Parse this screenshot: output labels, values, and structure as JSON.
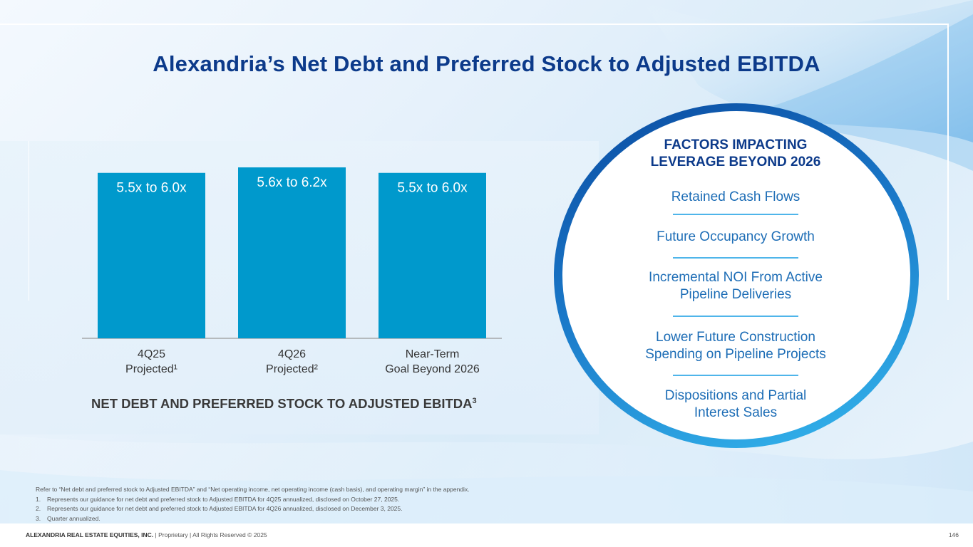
{
  "slide": {
    "title": "Alexandria’s Net Debt and Preferred Stock to Adjusted EBITDA"
  },
  "chart_data": {
    "type": "bar",
    "categories": [
      [
        "4Q25",
        "Projected¹"
      ],
      [
        "4Q26",
        "Projected²"
      ],
      [
        "Near-Term",
        "Goal Beyond 2026"
      ]
    ],
    "ranges": [
      [
        5.5,
        6.0
      ],
      [
        5.6,
        6.2
      ],
      [
        5.5,
        6.0
      ]
    ],
    "data_labels": [
      "5.5x to 6.0x",
      "5.6x to 6.2x",
      "5.5x to 6.0x"
    ],
    "caption": "NET DEBT AND PREFERRED STOCK TO ADJUSTED EBITDA",
    "caption_sup": "3",
    "bar_color": "#0099cc",
    "grid": false,
    "legend": "none"
  },
  "factors": {
    "title_lines": [
      "FACTORS IMPACTING",
      "LEVERAGE BEYOND 2026"
    ],
    "items": [
      {
        "lines": [
          "Retained Cash Flows"
        ]
      },
      {
        "lines": [
          "Future Occupancy Growth"
        ]
      },
      {
        "lines": [
          "Incremental NOI From Active",
          "Pipeline Deliveries"
        ]
      },
      {
        "lines": [
          "Lower Future Construction",
          "Spending on Pipeline Projects"
        ]
      },
      {
        "lines": [
          "Dispositions and Partial",
          "Interest Sales"
        ]
      }
    ]
  },
  "footnotes": {
    "intro": "Refer to “Net debt and preferred stock to Adjusted EBITDA” and “Net operating income, net operating income (cash basis), and operating margin” in the appendix.",
    "notes": [
      {
        "num": "1.",
        "text": "Represents our guidance for net debt and preferred stock to Adjusted EBITDA for 4Q25 annualized, disclosed on October 27, 2025."
      },
      {
        "num": "2.",
        "text": "Represents our guidance for net debt and preferred stock to Adjusted EBITDA for 4Q26 annualized, disclosed on December 3, 2025."
      },
      {
        "num": "3.",
        "text": "Quarter annualized."
      }
    ]
  },
  "footer": {
    "company": "ALEXANDRIA REAL ESTATE EQUITIES, INC.",
    "rights": " | Proprietary | All Rights Reserved © 2025",
    "page_number": "146"
  },
  "colors": {
    "title": "#0c3a8a",
    "factor_text": "#1d6db6",
    "circle_ring_start": "#0a4aa0",
    "circle_ring_end": "#35b8ee"
  }
}
